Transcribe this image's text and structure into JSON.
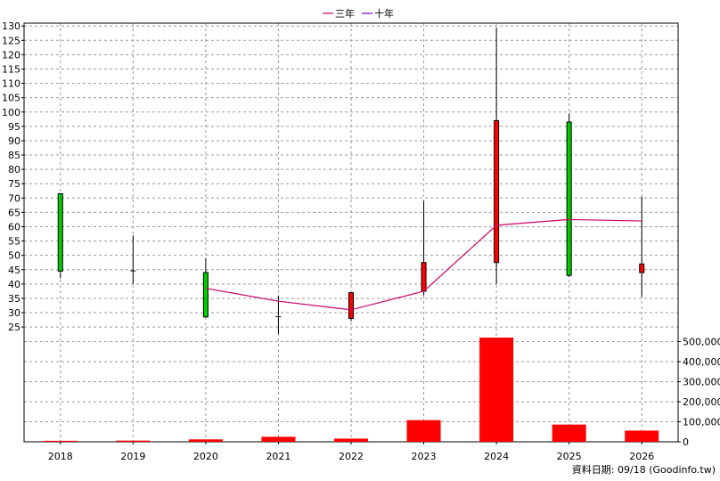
{
  "chart_data": {
    "type": "candlestick-with-volume",
    "legend": [
      {
        "name": "三年",
        "color": "#cc0066"
      },
      {
        "name": "十年",
        "color": "#6600cc"
      }
    ],
    "legend_position": "top-center",
    "x": [
      "2018",
      "2019",
      "2020",
      "2021",
      "2022",
      "2023",
      "2024",
      "2025",
      "2026"
    ],
    "price": {
      "ylim": [
        21,
        131
      ],
      "ticks": [
        25,
        30,
        35,
        40,
        45,
        50,
        55,
        60,
        65,
        70,
        75,
        80,
        85,
        90,
        95,
        100,
        105,
        110,
        115,
        120,
        125,
        130
      ],
      "candles": [
        {
          "x": "2018",
          "open": 71.5,
          "high": 71.5,
          "low": 42.0,
          "close": 44.5
        },
        {
          "x": "2019",
          "open": 44.6,
          "high": 57.0,
          "low": 40.0,
          "close": 44.4
        },
        {
          "x": "2020",
          "open": 44.0,
          "high": 49.0,
          "low": 28.5,
          "close": 28.5
        },
        {
          "x": "2021",
          "open": 28.6,
          "high": 36.0,
          "low": 22.5,
          "close": 28.4
        },
        {
          "x": "2022",
          "open": 28.0,
          "high": 37.0,
          "low": 27.0,
          "close": 37.0
        },
        {
          "x": "2023",
          "open": 37.5,
          "high": 69.0,
          "low": 36.0,
          "close": 47.5
        },
        {
          "x": "2024",
          "open": 47.5,
          "high": 129.5,
          "low": 40.0,
          "close": 97.0
        },
        {
          "x": "2025",
          "open": 96.5,
          "high": 99.5,
          "low": 42.5,
          "close": 43.0
        },
        {
          "x": "2026",
          "open": 44.0,
          "high": 70.5,
          "low": 35.5,
          "close": 47.0
        }
      ],
      "series": [
        {
          "name": "三年",
          "values": [
            null,
            null,
            38.5,
            34.0,
            31.0,
            37.5,
            60.5,
            62.5,
            62.0
          ]
        },
        {
          "name": "十年",
          "values": []
        }
      ]
    },
    "volume": {
      "ylim": [
        0,
        520000
      ],
      "ticks": [
        0,
        100000,
        200000,
        300000,
        400000,
        500000
      ],
      "tick_labels": [
        "0",
        "100,000",
        "200,000",
        "300,000",
        "400,000",
        "500,000"
      ],
      "values": [
        5000,
        6000,
        12000,
        25000,
        16000,
        108000,
        520000,
        86000,
        56000
      ]
    },
    "grid": true
  },
  "footer": {
    "data_date": "資料日期: 09/18 (Goodinfo.tw)"
  },
  "colors": {
    "up": "#ff0000",
    "down": "#00cc00",
    "volume": "#ff0000",
    "three_year": "#cc0066",
    "ten_year": "#6600cc",
    "grid": "#999999"
  }
}
